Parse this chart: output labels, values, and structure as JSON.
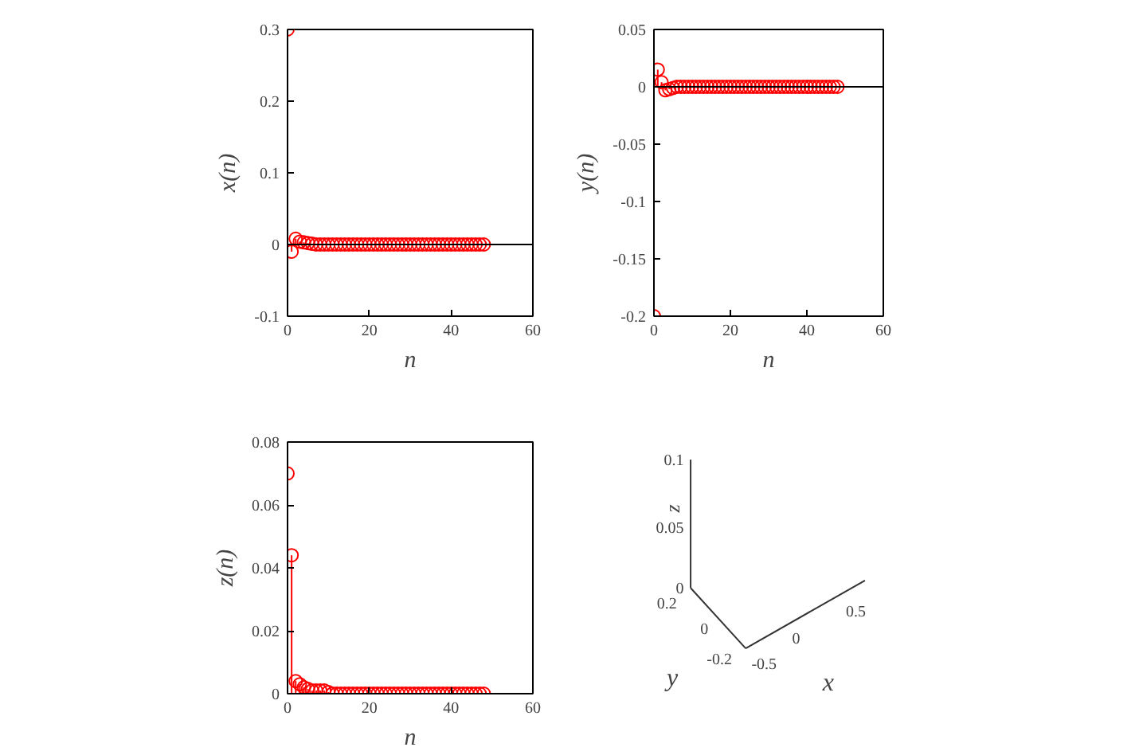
{
  "chart_data": [
    {
      "type": "lollipop",
      "xlabel": "n",
      "ylabel": "x(n)",
      "x": [
        0,
        1,
        2,
        3,
        4,
        5,
        6,
        7,
        8,
        9,
        10,
        11,
        12,
        13,
        14,
        15,
        16,
        17,
        18,
        19,
        20,
        21,
        22,
        23,
        24,
        25,
        26,
        27,
        28,
        29,
        30,
        31,
        32,
        33,
        34,
        35,
        36,
        37,
        38,
        39,
        40,
        41,
        42,
        43,
        44,
        45,
        46,
        47,
        48
      ],
      "series": [
        {
          "color": "#ff0000",
          "values": [
            0.3,
            -0.01,
            0.008,
            0.004,
            0.003,
            0.002,
            0.001,
            0,
            0,
            0,
            0,
            0,
            0,
            0,
            0,
            0,
            0,
            0,
            0,
            0,
            0,
            0,
            0,
            0,
            0,
            0,
            0,
            0,
            0,
            0,
            0,
            0,
            0,
            0,
            0,
            0,
            0,
            0,
            0,
            0,
            0,
            0,
            0,
            0,
            0,
            0,
            0,
            0,
            0
          ]
        }
      ],
      "xlim": [
        0,
        60
      ],
      "xticks": [
        0,
        20,
        40,
        60
      ],
      "ylim": [
        -0.1,
        0.3
      ],
      "yticks": [
        -0.1,
        0,
        0.1,
        0.2,
        0.3
      ],
      "marker": "circle",
      "grid": false,
      "ref_lines": [
        {
          "axis": "y",
          "value": 0,
          "color": "#000000"
        }
      ]
    },
    {
      "type": "lollipop",
      "xlabel": "n",
      "ylabel": "y(n)",
      "x": [
        0,
        1,
        2,
        3,
        4,
        5,
        6,
        7,
        8,
        9,
        10,
        11,
        12,
        13,
        14,
        15,
        16,
        17,
        18,
        19,
        20,
        21,
        22,
        23,
        24,
        25,
        26,
        27,
        28,
        29,
        30,
        31,
        32,
        33,
        34,
        35,
        36,
        37,
        38,
        39,
        40,
        41,
        42,
        43,
        44,
        45,
        46,
        47,
        48
      ],
      "series": [
        {
          "color": "#ff0000",
          "values": [
            -0.2,
            0.015,
            0.004,
            -0.003,
            -0.002,
            -0.001,
            0,
            0,
            0,
            0,
            0,
            0,
            0,
            0,
            0,
            0,
            0,
            0,
            0,
            0,
            0,
            0,
            0,
            0,
            0,
            0,
            0,
            0,
            0,
            0,
            0,
            0,
            0,
            0,
            0,
            0,
            0,
            0,
            0,
            0,
            0,
            0,
            0,
            0,
            0,
            0,
            0,
            0,
            0
          ]
        }
      ],
      "xlim": [
        0,
        60
      ],
      "xticks": [
        0,
        20,
        40,
        60
      ],
      "ylim": [
        -0.2,
        0.05
      ],
      "yticks": [
        -0.2,
        -0.15,
        -0.1,
        -0.05,
        0,
        0.05
      ],
      "marker": "circle",
      "grid": false,
      "ref_lines": [
        {
          "axis": "y",
          "value": 0,
          "color": "#000000"
        }
      ]
    },
    {
      "type": "lollipop",
      "xlabel": "n",
      "ylabel": "z(n)",
      "x": [
        0,
        1,
        2,
        3,
        4,
        5,
        6,
        7,
        8,
        9,
        10,
        11,
        12,
        13,
        14,
        15,
        16,
        17,
        18,
        19,
        20,
        21,
        22,
        23,
        24,
        25,
        26,
        27,
        28,
        29,
        30,
        31,
        32,
        33,
        34,
        35,
        36,
        37,
        38,
        39,
        40,
        41,
        42,
        43,
        44,
        45,
        46,
        47,
        48
      ],
      "series": [
        {
          "color": "#ff0000",
          "values": [
            0.07,
            0.044,
            0.004,
            0.003,
            0.002,
            0.0015,
            0.001,
            0.001,
            0.001,
            0.001,
            0.0005,
            0,
            0,
            0,
            0,
            0,
            0,
            0,
            0,
            0,
            0,
            0,
            0,
            0,
            0,
            0,
            0,
            0,
            0,
            0,
            0,
            0,
            0,
            0,
            0,
            0,
            0,
            0,
            0,
            0,
            0,
            0,
            0,
            0,
            0,
            0,
            0,
            0,
            0
          ]
        }
      ],
      "xlim": [
        0,
        60
      ],
      "xticks": [
        0,
        20,
        40,
        60
      ],
      "ylim": [
        0,
        0.08
      ],
      "yticks": [
        0,
        0.02,
        0.04,
        0.06,
        0.08
      ],
      "marker": "circle",
      "grid": false
    },
    {
      "type": "other",
      "xlabel": "x",
      "ylabel": "y",
      "annotations": [
        "z",
        "0.1",
        "0.05",
        "0",
        "0.2",
        "0",
        "-0.2",
        "-0.5",
        "0",
        "0.5"
      ]
    }
  ]
}
